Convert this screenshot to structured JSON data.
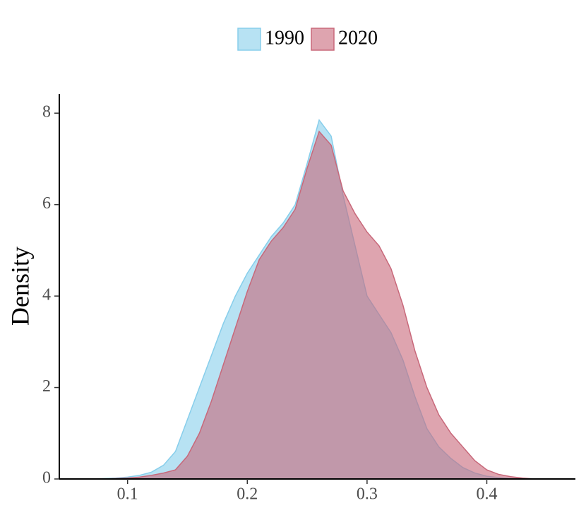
{
  "chart_data": {
    "type": "area",
    "y_label": "Density",
    "x": [
      0.06,
      0.07,
      0.08,
      0.09,
      0.1,
      0.11,
      0.12,
      0.13,
      0.14,
      0.15,
      0.16,
      0.17,
      0.18,
      0.19,
      0.2,
      0.21,
      0.22,
      0.23,
      0.24,
      0.25,
      0.26,
      0.27,
      0.28,
      0.29,
      0.3,
      0.31,
      0.32,
      0.33,
      0.34,
      0.35,
      0.36,
      0.37,
      0.38,
      0.39,
      0.4,
      0.41,
      0.42,
      0.43,
      0.44
    ],
    "series": [
      {
        "name": "1990",
        "color": "#87ceeb",
        "values": [
          0,
          0,
          0.01,
          0.02,
          0.04,
          0.08,
          0.15,
          0.3,
          0.6,
          1.3,
          2.0,
          2.7,
          3.4,
          4.0,
          4.5,
          4.9,
          5.3,
          5.6,
          6.0,
          6.9,
          7.85,
          7.5,
          6.2,
          5.1,
          4.0,
          3.6,
          3.2,
          2.6,
          1.8,
          1.1,
          0.7,
          0.45,
          0.25,
          0.13,
          0.06,
          0.03,
          0.01,
          0,
          0
        ]
      },
      {
        "name": "2020",
        "color": "#c8687a",
        "values": [
          0,
          0,
          0,
          0.01,
          0.02,
          0.04,
          0.08,
          0.13,
          0.2,
          0.5,
          1.0,
          1.7,
          2.5,
          3.3,
          4.1,
          4.8,
          5.2,
          5.5,
          5.9,
          6.8,
          7.6,
          7.3,
          6.3,
          5.8,
          5.4,
          5.1,
          4.6,
          3.8,
          2.8,
          2.0,
          1.4,
          1.0,
          0.7,
          0.4,
          0.2,
          0.1,
          0.05,
          0.02,
          0
        ]
      }
    ],
    "xlim": [
      0.043,
      0.474
    ],
    "xticks": [
      0.1,
      0.2,
      0.3,
      0.4
    ],
    "ylim": [
      0,
      8.42
    ],
    "yticks": [
      0,
      2,
      4,
      6,
      8
    ],
    "opacity": 0.6,
    "legend": "top"
  }
}
